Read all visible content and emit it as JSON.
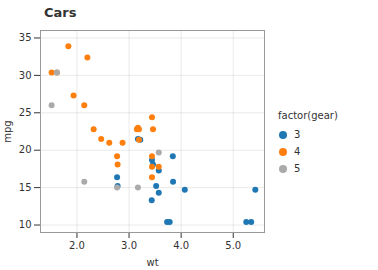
{
  "chart_data": {
    "type": "scatter",
    "title": "Cars",
    "xlabel": "wt",
    "ylabel": "mpg",
    "xlim": [
      1.3,
      5.6
    ],
    "ylim": [
      9,
      36
    ],
    "xticks": [
      2,
      3,
      4,
      5
    ],
    "yticks": [
      10,
      15,
      20,
      25,
      30,
      35
    ],
    "grid": true,
    "legend": "right",
    "legend_title": "factor(gear)",
    "series": [
      {
        "name": "3",
        "color": "#1f77b4",
        "x": [
          3.215,
          3.44,
          3.46,
          3.57,
          4.07,
          3.73,
          3.78,
          5.25,
          5.424,
          5.345,
          3.52,
          3.435,
          3.84,
          3.845,
          3.17,
          2.77,
          3.57,
          2.78
        ],
        "values": [
          21.4,
          18.7,
          18.1,
          14.3,
          14.7,
          10.4,
          10.4,
          10.4,
          14.7,
          10.4,
          15.2,
          13.3,
          19.2,
          15.8,
          21.5,
          16.4,
          17.3,
          15.2
        ]
      },
      {
        "name": "4",
        "color": "#ff7f0e",
        "x": [
          2.62,
          2.875,
          2.32,
          3.19,
          3.15,
          2.2,
          1.615,
          1.835,
          2.465,
          1.935,
          2.14,
          1.513,
          3.17,
          2.77,
          3.57,
          2.78,
          3.44,
          3.46,
          3.44,
          3.44,
          3.44,
          3.19
        ],
        "values": [
          21.0,
          21.0,
          22.8,
          21.4,
          22.8,
          32.4,
          30.4,
          33.9,
          21.5,
          27.3,
          26.0,
          30.4,
          23.0,
          19.2,
          17.8,
          18.1,
          24.4,
          22.8,
          19.2,
          17.8,
          16.4,
          22.8
        ]
      },
      {
        "name": "5",
        "color": "#aaaaaa",
        "x": [
          1.513,
          1.615,
          2.14,
          3.17,
          3.57,
          2.77
        ],
        "values": [
          26.0,
          30.4,
          15.8,
          15.0,
          19.7,
          15.0
        ]
      }
    ]
  }
}
